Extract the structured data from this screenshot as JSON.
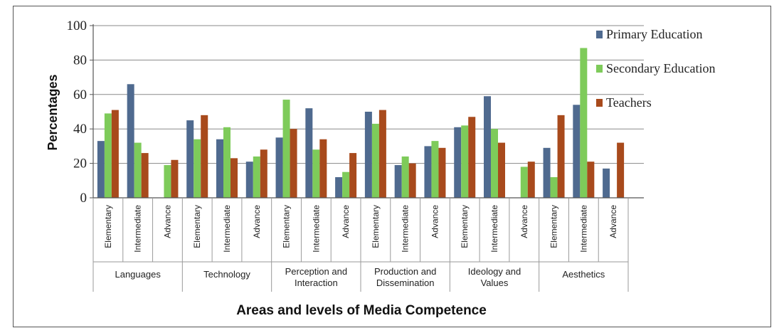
{
  "chart_data": {
    "type": "bar",
    "ylabel": "Percentages",
    "xlabel": "Areas and levels of Media Competence",
    "ylim": [
      0,
      100
    ],
    "yticks": [
      0,
      20,
      40,
      60,
      80,
      100
    ],
    "grid": true,
    "legend_position": "right",
    "groups": [
      "Languages",
      "Technology",
      "Perception and Interaction",
      "Production and Dissemination",
      "Ideology and Values",
      "Aesthetics"
    ],
    "levels": [
      "Elementary",
      "Intermediate",
      "Advance"
    ],
    "series": [
      {
        "name": "Primary Education",
        "color": "#4f6a8f",
        "values": [
          33,
          66,
          0,
          45,
          34,
          21,
          35,
          52,
          12,
          50,
          19,
          30,
          41,
          59,
          0,
          29,
          54,
          17
        ]
      },
      {
        "name": "Secondary Education",
        "color": "#7ecb5a",
        "values": [
          49,
          32,
          19,
          34,
          41,
          24,
          57,
          28,
          15,
          43,
          24,
          33,
          42,
          40,
          18,
          12,
          87,
          0
        ]
      },
      {
        "name": "Teachers",
        "color": "#a84a1c",
        "values": [
          51,
          26,
          22,
          48,
          23,
          28,
          40,
          34,
          26,
          51,
          20,
          29,
          47,
          32,
          21,
          48,
          21,
          32
        ]
      }
    ]
  }
}
